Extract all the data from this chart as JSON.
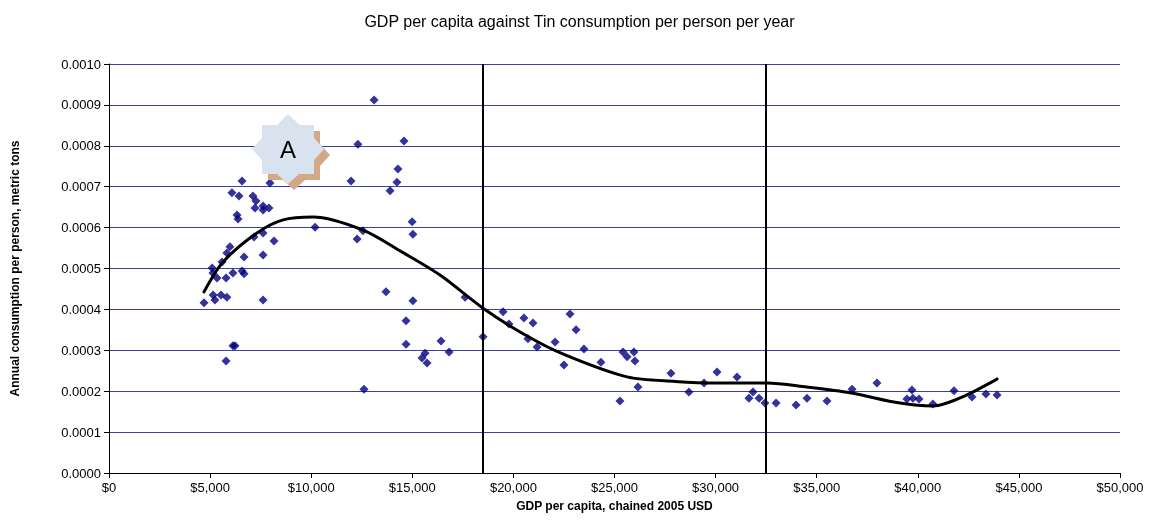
{
  "chart_data": {
    "type": "scatter",
    "title": "GDP per capita against Tin consumption per person per year",
    "xlabel": "GDP per capita, chained 2005 USD",
    "ylabel": "Annual consumption per person, metric tons",
    "annotations": [
      "A"
    ],
    "series": [
      {
        "color": "#000080",
        "marker": "diamond",
        "x": [
          4700,
          5100,
          5140,
          5150,
          5240,
          5540,
          5830,
          5340,
          5790,
          5590,
          5830,
          5980,
          6130,
          6580,
          6680,
          6680,
          7170,
          7620,
          7620,
          8160,
          7620,
          5790,
          6130,
          6230,
          6080,
          6430,
          6580,
          6330,
          6380,
          7120,
          7270,
          7220,
          7620,
          7620,
          7910,
          7960,
          10190,
          11970,
          12310,
          12270,
          12560,
          13110,
          12610,
          13700,
          14590,
          14290,
          14240,
          13900,
          14990,
          15030,
          15030,
          14690,
          14690,
          15630,
          15480,
          15730,
          16420,
          16820,
          17610,
          18500,
          19490,
          19780,
          20520,
          20970,
          20720,
          21170,
          22060,
          22500,
          22800,
          23100,
          23490,
          24330,
          25270,
          25420,
          25620,
          25960,
          26010,
          26160,
          27790,
          28680,
          29430,
          30070,
          31060,
          31850,
          31650,
          32150,
          32440,
          32990,
          33980,
          34520,
          35510,
          36750,
          37980,
          39710,
          39460,
          39760,
          40060,
          40750,
          41790,
          42680,
          43370,
          43920
        ],
        "values": [
          0.000416,
          0.000501,
          0.000489,
          0.000435,
          0.000423,
          0.000435,
          0.00043,
          0.000477,
          0.000477,
          0.000516,
          0.000538,
          0.000553,
          0.000489,
          0.000494,
          0.000487,
          0.000528,
          0.000577,
          0.000587,
          0.000533,
          0.000567,
          0.000423,
          0.000274,
          0.000311,
          0.000311,
          0.000685,
          0.000677,
          0.000714,
          0.000631,
          0.000621,
          0.000677,
          0.000665,
          0.000648,
          0.000643,
          0.000653,
          0.000648,
          0.000709,
          0.000601,
          0.000714,
          0.000804,
          0.000572,
          0.000592,
          0.000912,
          0.000205,
          0.000443,
          0.000812,
          0.000743,
          0.000711,
          0.00069,
          0.000614,
          0.000584,
          0.000421,
          0.000372,
          0.000315,
          0.000293,
          0.000281,
          0.000269,
          0.000323,
          0.000296,
          0.00043,
          0.000333,
          0.000394,
          0.000364,
          0.000379,
          0.000367,
          0.000328,
          0.000308,
          0.00032,
          0.000264,
          0.000389,
          0.00035,
          0.000303,
          0.000271,
          0.000176,
          0.000296,
          0.000284,
          0.000296,
          0.000274,
          0.00021,
          0.000244,
          0.000198,
          0.00022,
          0.000247,
          0.000235,
          0.000198,
          0.000183,
          0.000183,
          0.000171,
          0.000171,
          0.000166,
          0.000183,
          0.000176,
          0.000205,
          0.00022,
          0.000203,
          0.000181,
          0.000183,
          0.000181,
          0.000169,
          0.000201,
          0.000186,
          0.000193,
          0.000191
        ]
      },
      {
        "type": "line",
        "color": "#000000",
        "marker": "none",
        "line_style": "solid",
        "x": [
          4700,
          5640,
          7320,
          8610,
          10090,
          12560,
          14500,
          16370,
          18500,
          20500,
          22500,
          25620,
          28000,
          30070,
          32540,
          34500,
          36650,
          39120,
          40750,
          42430,
          43920
        ],
        "values": [
          0.000443,
          0.000516,
          0.000587,
          0.000619,
          0.000626,
          0.000594,
          0.00054,
          0.000484,
          0.000403,
          0.00034,
          0.00029,
          0.000235,
          0.000224,
          0.00022,
          0.00022,
          0.00021,
          0.000196,
          0.000171,
          0.000164,
          0.000191,
          0.00023
        ]
      }
    ],
    "ref_lines": [
      {
        "axis": "x",
        "value": 18500,
        "color": "#000000"
      },
      {
        "axis": "x",
        "value": 32500,
        "color": "#000000"
      }
    ],
    "xlim": [
      0,
      50000
    ],
    "xticks": [
      {
        "value": 0,
        "label": "$0"
      },
      {
        "value": 5000,
        "label": "$5,000"
      },
      {
        "value": 10000,
        "label": "$10,000"
      },
      {
        "value": 15000,
        "label": "$15,000"
      },
      {
        "value": 20000,
        "label": "$20,000"
      },
      {
        "value": 25000,
        "label": "$25,000"
      },
      {
        "value": 30000,
        "label": "$30,000"
      },
      {
        "value": 35000,
        "label": "$35,000"
      },
      {
        "value": 40000,
        "label": "$40,000"
      },
      {
        "value": 45000,
        "label": "$45,000"
      },
      {
        "value": 50000,
        "label": "$50,000"
      }
    ],
    "ylim": [
      0,
      0.001
    ],
    "yticks": [
      {
        "value": 0,
        "label": "0.0000"
      },
      {
        "value": 0.0001,
        "label": "0.0001"
      },
      {
        "value": 0.0002,
        "label": "0.0002"
      },
      {
        "value": 0.0003,
        "label": "0.0003"
      },
      {
        "value": 0.0004,
        "label": "0.0004"
      },
      {
        "value": 0.0005,
        "label": "0.0005"
      },
      {
        "value": 0.0006,
        "label": "0.0006"
      },
      {
        "value": 0.0007,
        "label": "0.0007"
      },
      {
        "value": 0.0008,
        "label": "0.0008"
      },
      {
        "value": 0.0009,
        "label": "0.0009"
      },
      {
        "value": 0.001,
        "label": "0.0010"
      }
    ],
    "grid": "y"
  }
}
